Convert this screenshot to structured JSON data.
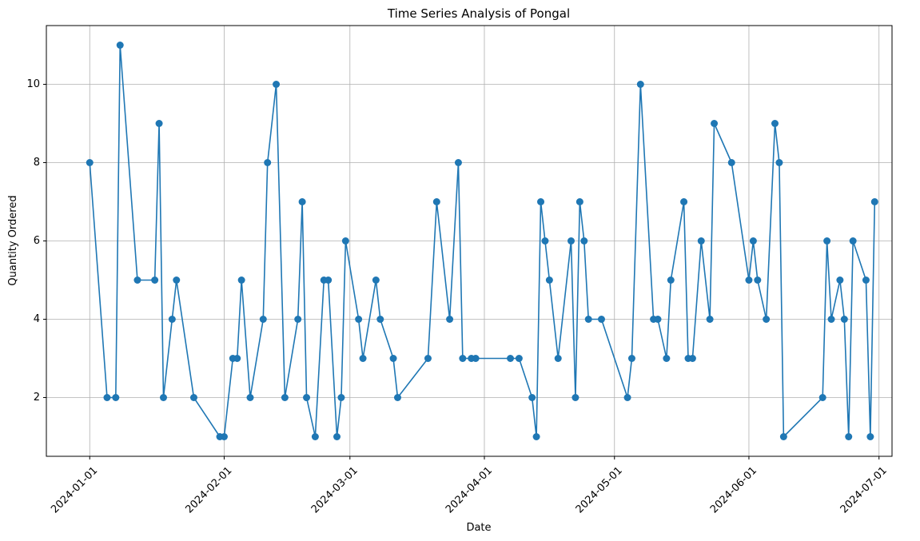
{
  "chart_data": {
    "type": "line",
    "title": "Time Series Analysis of Pongal",
    "xlabel": "Date",
    "ylabel": "Quantity Ordered",
    "xlim": [
      "2023-12-22",
      "2024-07-04"
    ],
    "ylim": [
      0.5,
      11.5
    ],
    "x_ticks": [
      "2024-01-01",
      "2024-02-01",
      "2024-03-01",
      "2024-04-01",
      "2024-05-01",
      "2024-06-01",
      "2024-07-01"
    ],
    "y_ticks": [
      2,
      4,
      6,
      8,
      10
    ],
    "grid": true,
    "color": "#1f77b4",
    "marker": "circle",
    "x": [
      "2024-01-01",
      "2024-01-05",
      "2024-01-07",
      "2024-01-08",
      "2024-01-12",
      "2024-01-16",
      "2024-01-17",
      "2024-01-18",
      "2024-01-20",
      "2024-01-21",
      "2024-01-25",
      "2024-01-31",
      "2024-02-01",
      "2024-02-03",
      "2024-02-04",
      "2024-02-05",
      "2024-02-07",
      "2024-02-10",
      "2024-02-11",
      "2024-02-13",
      "2024-02-15",
      "2024-02-18",
      "2024-02-19",
      "2024-02-20",
      "2024-02-22",
      "2024-02-24",
      "2024-02-25",
      "2024-02-27",
      "2024-02-28",
      "2024-02-29",
      "2024-03-03",
      "2024-03-04",
      "2024-03-07",
      "2024-03-08",
      "2024-03-11",
      "2024-03-12",
      "2024-03-19",
      "2024-03-21",
      "2024-03-24",
      "2024-03-26",
      "2024-03-27",
      "2024-03-29",
      "2024-03-30",
      "2024-04-07",
      "2024-04-09",
      "2024-04-12",
      "2024-04-13",
      "2024-04-14",
      "2024-04-15",
      "2024-04-16",
      "2024-04-18",
      "2024-04-21",
      "2024-04-22",
      "2024-04-23",
      "2024-04-24",
      "2024-04-25",
      "2024-04-28",
      "2024-05-04",
      "2024-05-05",
      "2024-05-07",
      "2024-05-10",
      "2024-05-11",
      "2024-05-13",
      "2024-05-14",
      "2024-05-17",
      "2024-05-18",
      "2024-05-19",
      "2024-05-21",
      "2024-05-23",
      "2024-05-24",
      "2024-05-28",
      "2024-06-01",
      "2024-06-02",
      "2024-06-03",
      "2024-06-05",
      "2024-06-07",
      "2024-06-08",
      "2024-06-09",
      "2024-06-18",
      "2024-06-19",
      "2024-06-20",
      "2024-06-22",
      "2024-06-23",
      "2024-06-24",
      "2024-06-25",
      "2024-06-28",
      "2024-06-29",
      "2024-06-30"
    ],
    "values": [
      8,
      2,
      2,
      11,
      5,
      5,
      9,
      2,
      4,
      5,
      2,
      1,
      1,
      3,
      3,
      5,
      2,
      4,
      8,
      10,
      2,
      4,
      7,
      2,
      1,
      5,
      5,
      1,
      2,
      6,
      4,
      3,
      5,
      4,
      3,
      2,
      3,
      7,
      4,
      8,
      3,
      3,
      3,
      3,
      3,
      2,
      1,
      7,
      6,
      5,
      3,
      6,
      2,
      7,
      6,
      4,
      4,
      2,
      3,
      10,
      4,
      4,
      3,
      5,
      7,
      3,
      3,
      6,
      4,
      9,
      8,
      5,
      6,
      5,
      4,
      9,
      8,
      1,
      2,
      6,
      4,
      5,
      4,
      1,
      6,
      5,
      1,
      7
    ]
  }
}
